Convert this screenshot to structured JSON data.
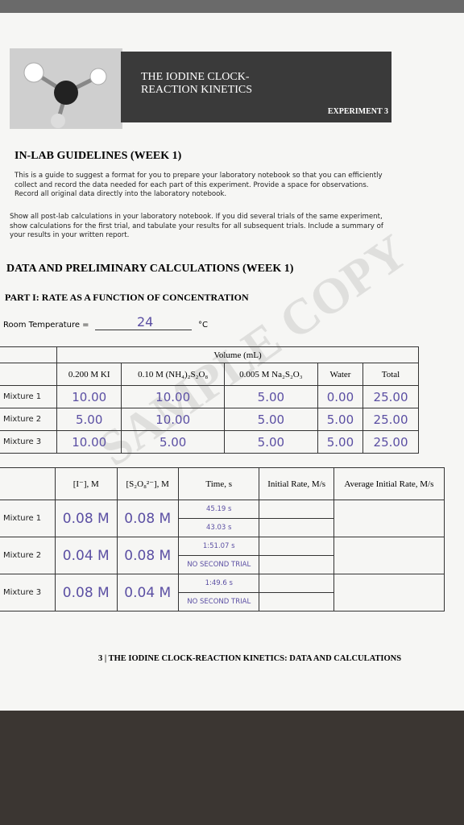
{
  "header": {
    "title_lines": [
      "THE IODINE CLOCK-",
      "REACTION KINETICS"
    ],
    "experiment": "EXPERIMENT 3"
  },
  "guidelines": {
    "heading": "IN-LAB GUIDELINES (WEEK 1)",
    "paragraphs": [
      "This is a guide to suggest a format for you to prepare your laboratory notebook so that you can efficiently collect and record the data needed for each part of this experiment. Provide a space for observations. Record all original data directly into the laboratory notebook.",
      "Show all post-lab calculations in your laboratory notebook. If you did several trials of the same experiment, show calculations for the first trial, and tabulate your results for all subsequent trials. Include a summary of your results in your written report."
    ]
  },
  "section": {
    "heading": "DATA AND PRELIMINARY CALCULATIONS (WEEK 1)",
    "part": "PART I: RATE AS A FUNCTION OF CONCENTRATION",
    "room_temperature": {
      "label": "Room Temperature =",
      "value": "24",
      "unit": "°C"
    }
  },
  "watermark": "SAMPLE COPY",
  "table1": {
    "group_header": "Volume (mL)",
    "columns": [
      "0.200 M KI",
      "0.10 M (NH₄)₂S₂O₈",
      "0.005 M Na₂S₂O₃",
      "Water",
      "Total"
    ],
    "rows": [
      {
        "label": "Mixture 1",
        "values": [
          "10.00",
          "10.00",
          "5.00",
          "0.00",
          "25.00"
        ]
      },
      {
        "label": "Mixture 2",
        "values": [
          "5.00",
          "10.00",
          "5.00",
          "5.00",
          "25.00"
        ]
      },
      {
        "label": "Mixture 3",
        "values": [
          "10.00",
          "5.00",
          "5.00",
          "5.00",
          "25.00"
        ]
      }
    ]
  },
  "table2": {
    "columns": [
      "[I⁻], M",
      "[S₂O₈²⁻], M",
      "Time, s",
      "Initial Rate, M/s",
      "Average Initial Rate, M/s"
    ],
    "rows": [
      {
        "label": "Mixture 1",
        "iodide": "0.08 M",
        "persulfate": "0.08 M",
        "times": [
          "45.19 s",
          "43.03 s"
        ]
      },
      {
        "label": "Mixture 2",
        "iodide": "0.04 M",
        "persulfate": "0.08 M",
        "times": [
          "1:51.07 s",
          "NO SECOND TRIAL"
        ]
      },
      {
        "label": "Mixture 3",
        "iodide": "0.08 M",
        "persulfate": "0.04 M",
        "times": [
          "1:49.6 s",
          "NO SECOND TRIAL"
        ]
      }
    ]
  },
  "footer": "3 | THE IODINE CLOCK-REACTION KINETICS: DATA AND CALCULATIONS"
}
